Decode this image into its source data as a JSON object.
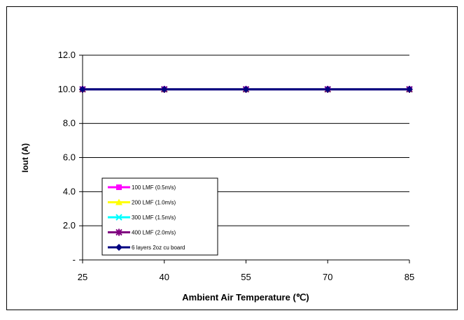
{
  "chart_data": {
    "type": "line",
    "title": "",
    "xlabel": "Ambient Air Temperature (℃)",
    "ylabel": "Iout (A)",
    "x": [
      25,
      40,
      55,
      70,
      85
    ],
    "x_tick_labels": [
      "25",
      "40",
      "55",
      "70",
      "85"
    ],
    "ylim": [
      0,
      12
    ],
    "y_ticks": [
      0,
      2,
      4,
      6,
      8,
      10,
      12
    ],
    "y_tick_labels": [
      "-",
      "2.0",
      "4.0",
      "6.0",
      "8.0",
      "10.0",
      "12.0"
    ],
    "grid": "horizontal",
    "legend_position": "bottom-left",
    "series": [
      {
        "name": "100 LMF (0.5m/s)",
        "values": [
          10,
          10,
          10,
          10,
          10
        ],
        "color": "#ff00ff",
        "marker": "square"
      },
      {
        "name": "200 LMF (1.0m/s)",
        "values": [
          10,
          10,
          10,
          10,
          10
        ],
        "color": "#ffff00",
        "marker": "triangle"
      },
      {
        "name": "300 LMF (1.5m/s)",
        "values": [
          10,
          10,
          10,
          10,
          10
        ],
        "color": "#00ffff",
        "marker": "x"
      },
      {
        "name": "400 LMF (2.0m/s)",
        "values": [
          10,
          10,
          10,
          10,
          10
        ],
        "color": "#800080",
        "marker": "star"
      },
      {
        "name": "6 layers  2oz cu board",
        "values": [
          10,
          10,
          10,
          10,
          10
        ],
        "color": "#000080",
        "marker": "diamond"
      }
    ]
  }
}
